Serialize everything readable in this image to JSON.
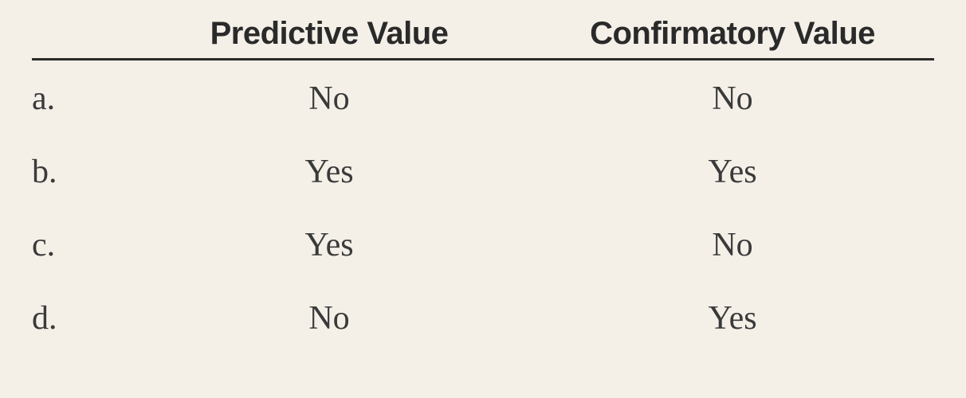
{
  "table": {
    "type": "table",
    "columns": [
      "Predictive Value",
      "Confirmatory Value"
    ],
    "column_fontsize": 40,
    "column_fontweight": "bold",
    "column_fontfamily": "sans-serif",
    "cell_fontsize": 42,
    "cell_fontfamily": "serif",
    "text_color": "#3a3a3a",
    "header_color": "#2a2a2a",
    "background_color": "#f4f0e8",
    "border_color": "#2a2a2a",
    "border_width": 3,
    "row_labels": [
      "a.",
      "b.",
      "c.",
      "d."
    ],
    "rows": [
      [
        "No",
        "No"
      ],
      [
        "Yes",
        "Yes"
      ],
      [
        "Yes",
        "No"
      ],
      [
        "No",
        "Yes"
      ]
    ],
    "label_col_width": 120,
    "alignment": "center"
  }
}
